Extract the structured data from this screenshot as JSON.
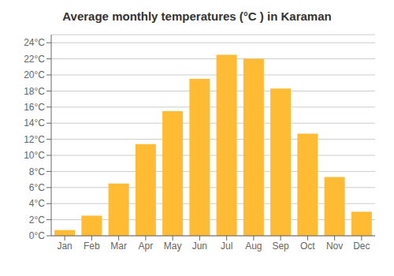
{
  "chart_data": {
    "type": "bar",
    "title": "Average monthly temperatures (°C ) in Karaman",
    "categories": [
      "Jan",
      "Feb",
      "Mar",
      "Apr",
      "May",
      "Jun",
      "Jul",
      "Aug",
      "Sep",
      "Oct",
      "Nov",
      "Dec"
    ],
    "values": [
      0.7,
      2.5,
      6.5,
      11.4,
      15.5,
      19.5,
      22.5,
      22.0,
      18.3,
      12.7,
      7.3,
      3.0
    ],
    "color": "#FFBB33",
    "ylim": [
      0,
      25
    ],
    "yticks": [
      {
        "value": 0,
        "label": "0°C"
      },
      {
        "value": 2,
        "label": "2°C"
      },
      {
        "value": 4,
        "label": "4°C"
      },
      {
        "value": 6,
        "label": "6°C"
      },
      {
        "value": 8,
        "label": "8°C"
      },
      {
        "value": 10,
        "label": "10°C"
      },
      {
        "value": 12,
        "label": "12°C"
      },
      {
        "value": 14,
        "label": "14°C"
      },
      {
        "value": 16,
        "label": "16°C"
      },
      {
        "value": 18,
        "label": "18°C"
      },
      {
        "value": 20,
        "label": "20°C"
      },
      {
        "value": 22,
        "label": "22°C"
      },
      {
        "value": 24,
        "label": "24°C"
      }
    ],
    "grid": true
  }
}
